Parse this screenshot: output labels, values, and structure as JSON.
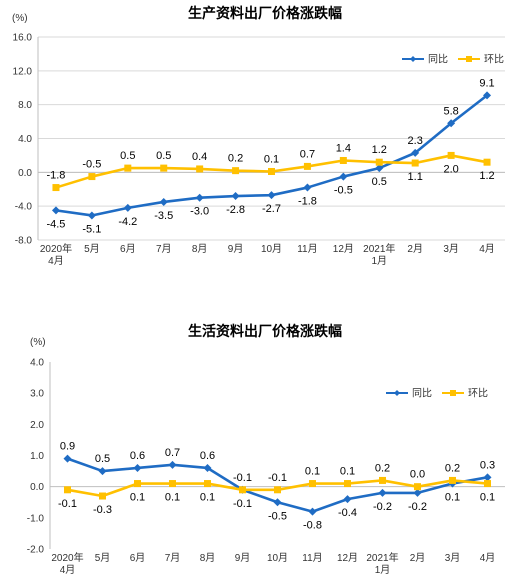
{
  "chart_data": [
    {
      "type": "line",
      "title": "生产资料出厂价格涨跌幅",
      "unit": "(%)",
      "categories": [
        "2020年|4月",
        "5月",
        "6月",
        "7月",
        "8月",
        "9月",
        "10月",
        "11月",
        "12月",
        "2021年|1月",
        "2月",
        "3月",
        "4月"
      ],
      "ylim": [
        -8.0,
        16.0
      ],
      "yticks": [
        "16.0",
        "12.0",
        "8.0",
        "4.0",
        "0.0",
        "-4.0",
        "-8.0"
      ],
      "ytick_values": [
        16,
        12,
        8,
        4,
        0,
        -4,
        -8
      ],
      "grid": true,
      "legend_position": "top-right",
      "series": [
        {
          "name": "同比",
          "color": "#1f6cc4",
          "marker": "diamond",
          "values": [
            -4.5,
            -5.1,
            -4.2,
            -3.5,
            -3.0,
            -2.8,
            -2.7,
            -1.8,
            -0.5,
            0.5,
            2.3,
            5.8,
            9.1
          ],
          "labels": [
            "-4.5",
            "-5.1",
            "-4.2",
            "-3.5",
            "-3.0",
            "-2.8",
            "-2.7",
            "-1.8",
            "-0.5",
            "0.5",
            "2.3",
            "5.8",
            "9.1"
          ],
          "label_side": [
            "below",
            "below",
            "below",
            "below",
            "below",
            "below",
            "below",
            "below",
            "below",
            "below",
            "above",
            "above",
            "above"
          ]
        },
        {
          "name": "环比",
          "color": "#ffc000",
          "marker": "square",
          "values": [
            -1.8,
            -0.5,
            0.5,
            0.5,
            0.4,
            0.2,
            0.1,
            0.7,
            1.4,
            1.2,
            1.1,
            2.0,
            1.2
          ],
          "labels": [
            "-1.8",
            "-0.5",
            "0.5",
            "0.5",
            "0.4",
            "0.2",
            "0.1",
            "0.7",
            "1.4",
            "1.2",
            "1.1",
            "2.0",
            "1.2"
          ],
          "label_side": [
            "above",
            "above",
            "above",
            "above",
            "above",
            "above",
            "above",
            "above",
            "above",
            "above",
            "below",
            "below",
            "below"
          ]
        }
      ]
    },
    {
      "type": "line",
      "title": "生活资料出厂价格涨跌幅",
      "unit": "(%)",
      "categories": [
        "2020年|4月",
        "5月",
        "6月",
        "7月",
        "8月",
        "9月",
        "10月",
        "11月",
        "12月",
        "2021年|1月",
        "2月",
        "3月",
        "4月"
      ],
      "ylim": [
        -2.0,
        4.0
      ],
      "yticks": [
        "4.0",
        "3.0",
        "2.0",
        "1.0",
        "0.0",
        "-1.0",
        "-2.0"
      ],
      "ytick_values": [
        4,
        3,
        2,
        1,
        0,
        -1,
        -2
      ],
      "grid": false,
      "legend_position": "top-right",
      "series": [
        {
          "name": "同比",
          "color": "#1f6cc4",
          "marker": "diamond",
          "values": [
            0.9,
            0.5,
            0.6,
            0.7,
            0.6,
            -0.1,
            -0.5,
            -0.8,
            -0.4,
            -0.2,
            -0.2,
            0.1,
            0.3
          ],
          "labels": [
            "0.9",
            "0.5",
            "0.6",
            "0.7",
            "0.6",
            "-0.1",
            "-0.5",
            "-0.8",
            "-0.4",
            "-0.2",
            "-0.2",
            "0.1",
            "0.3"
          ],
          "label_side": [
            "above",
            "above",
            "above",
            "above",
            "above",
            "below",
            "below",
            "below",
            "below",
            "below",
            "below",
            "below",
            "above"
          ]
        },
        {
          "name": "环比",
          "color": "#ffc000",
          "marker": "square",
          "values": [
            -0.1,
            -0.3,
            0.1,
            0.1,
            0.1,
            -0.1,
            -0.1,
            0.1,
            0.1,
            0.2,
            0.0,
            0.2,
            0.1
          ],
          "labels": [
            "-0.1",
            "-0.3",
            "0.1",
            "0.1",
            "0.1",
            "-0.1",
            "-0.1",
            "0.1",
            "0.1",
            "0.2",
            "0.0",
            "0.2",
            "0.1"
          ],
          "label_side": [
            "below",
            "below",
            "below",
            "below",
            "below",
            "above",
            "above",
            "above",
            "above",
            "above",
            "above",
            "above",
            "below"
          ]
        }
      ]
    }
  ]
}
